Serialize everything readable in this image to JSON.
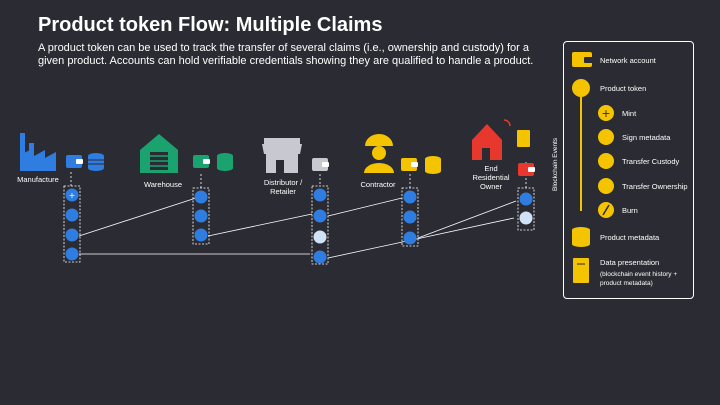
{
  "title": "Product token Flow: Multiple Claims",
  "subtitle": "A product token can be used to track the transfer of several claims (i.e., ownership and custody) for a given product.  Accounts can hold verifiable credentials showing they are qualified to handle a product.",
  "actors": [
    {
      "id": "manufacture",
      "label": "Manufacture",
      "color": "#2f7de1"
    },
    {
      "id": "warehouse",
      "label": "Warehouse",
      "color": "#1aa36f"
    },
    {
      "id": "distributor",
      "label": "Distributor /\nRetailer",
      "color": "#c8c8d0"
    },
    {
      "id": "contractor",
      "label": "Contractor",
      "color": "#f5c400"
    },
    {
      "id": "owner",
      "label": "End\nResidential\nOwner",
      "color": "#e8372c"
    }
  ],
  "legend": {
    "section_label": "Blockchain Events",
    "items": [
      {
        "icon": "wallet-icon",
        "label": "Network account"
      },
      {
        "icon": "token-icon",
        "label": "Product token"
      },
      {
        "icon": "mint-icon",
        "label": "Mint"
      },
      {
        "icon": "sign-metadata-icon",
        "label": "Sign metadata"
      },
      {
        "icon": "transfer-custody-icon",
        "label": "Transfer Custody"
      },
      {
        "icon": "transfer-ownership-icon",
        "label": "Transfer Ownership"
      },
      {
        "icon": "burn-icon",
        "label": "Burn"
      },
      {
        "icon": "database-icon",
        "label": "Product metadata"
      },
      {
        "icon": "notebook-icon",
        "label": "Data presentation"
      },
      {
        "icon": "",
        "label": "(blockchain event history +\nproduct metadata)"
      }
    ]
  },
  "colors": {
    "background": "#2b2b33",
    "legend_accent": "#f5c400",
    "connector": "#ffffff"
  }
}
